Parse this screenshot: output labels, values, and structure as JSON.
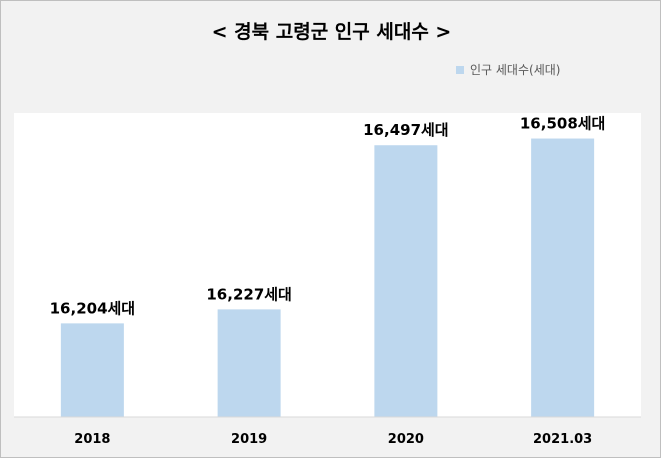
{
  "chart_data": {
    "type": "bar",
    "title": "< 경북 고령군 인구 세대수 >",
    "categories": [
      "2018",
      "2019",
      "2020",
      "2021.03"
    ],
    "series": [
      {
        "name": "인구 세대수(세대)",
        "values": [
          16204,
          16227,
          16497,
          16508
        ]
      }
    ],
    "data_labels": [
      "16,204세대",
      "16,227세대",
      "16,497세대",
      "16,508세대"
    ],
    "ylim": [
      16050,
      16550
    ],
    "grid": false,
    "legend_position": "top-right",
    "bar_color": "#bdd7ee"
  }
}
